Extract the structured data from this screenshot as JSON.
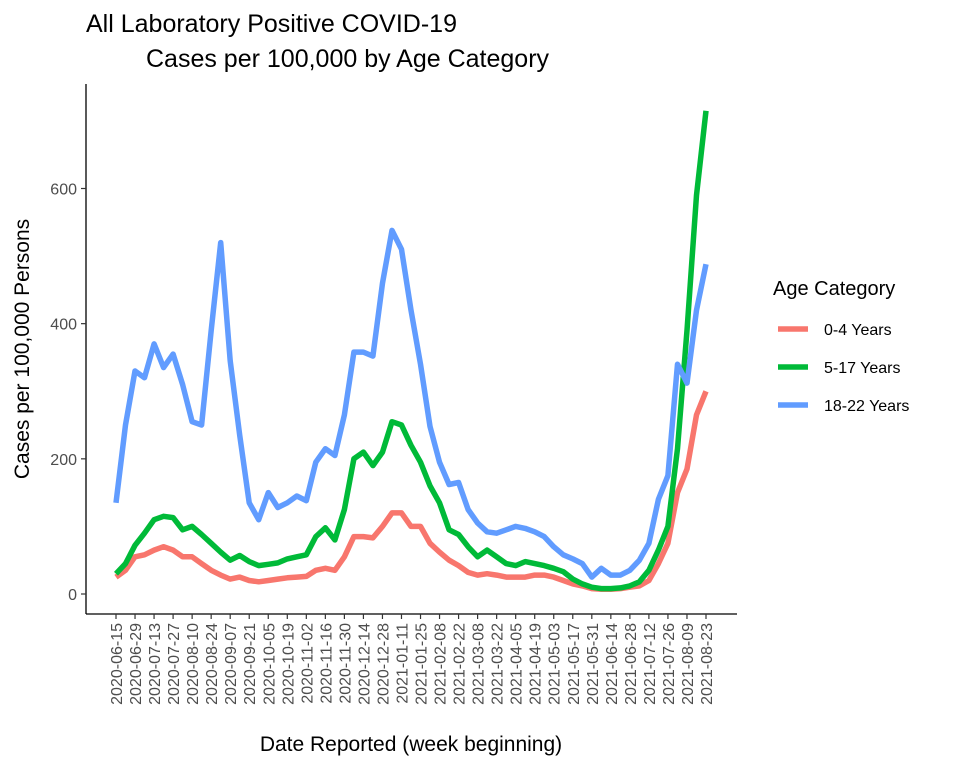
{
  "chart_data": {
    "type": "line",
    "title_line1": "All Laboratory Positive COVID-19",
    "title_line2": "Cases per 100,000 by Age Category",
    "xlabel": "Date Reported (week beginning)",
    "ylabel": "Cases per 100,000 Persons",
    "ylim": [
      -25,
      725
    ],
    "yticks": [
      0,
      200,
      400,
      600
    ],
    "grid": false,
    "legend": {
      "title": "Age Category",
      "placement": "right"
    },
    "x": [
      "2020-06-15",
      "2020-06-22",
      "2020-06-29",
      "2020-07-06",
      "2020-07-13",
      "2020-07-20",
      "2020-07-27",
      "2020-08-03",
      "2020-08-10",
      "2020-08-17",
      "2020-08-24",
      "2020-08-31",
      "2020-09-07",
      "2020-09-14",
      "2020-09-21",
      "2020-09-28",
      "2020-10-05",
      "2020-10-12",
      "2020-10-19",
      "2020-10-26",
      "2020-11-02",
      "2020-11-09",
      "2020-11-16",
      "2020-11-23",
      "2020-11-30",
      "2020-12-07",
      "2020-12-14",
      "2020-12-21",
      "2020-12-28",
      "2021-01-04",
      "2021-01-11",
      "2021-01-18",
      "2021-01-25",
      "2021-02-01",
      "2021-02-08",
      "2021-02-15",
      "2021-02-22",
      "2021-03-01",
      "2021-03-08",
      "2021-03-15",
      "2021-03-22",
      "2021-03-29",
      "2021-04-05",
      "2021-04-12",
      "2021-04-19",
      "2021-04-26",
      "2021-05-03",
      "2021-05-10",
      "2021-05-17",
      "2021-05-24",
      "2021-05-31",
      "2021-06-07",
      "2021-06-14",
      "2021-06-21",
      "2021-06-28",
      "2021-07-05",
      "2021-07-12",
      "2021-07-19",
      "2021-07-26",
      "2021-08-02",
      "2021-08-09",
      "2021-08-16",
      "2021-08-23"
    ],
    "xtick_labels": [
      "2020-06-15",
      "2020-06-29",
      "2020-07-13",
      "2020-07-27",
      "2020-08-10",
      "2020-08-24",
      "2020-09-07",
      "2020-09-21",
      "2020-10-05",
      "2020-10-19",
      "2020-11-02",
      "2020-11-16",
      "2020-11-30",
      "2020-12-14",
      "2020-12-28",
      "2021-01-11",
      "2021-01-25",
      "2021-02-08",
      "2021-02-22",
      "2021-03-08",
      "2021-03-22",
      "2021-04-05",
      "2021-04-19",
      "2021-05-03",
      "2021-05-17",
      "2021-05-31",
      "2021-06-14",
      "2021-06-28",
      "2021-07-12",
      "2021-07-26",
      "2021-08-09",
      "2021-08-23"
    ],
    "series": [
      {
        "name": "0-4 Years",
        "color": "#F8766D",
        "values": [
          25,
          35,
          55,
          58,
          65,
          70,
          65,
          55,
          55,
          45,
          35,
          28,
          22,
          25,
          20,
          18,
          20,
          22,
          24,
          25,
          26,
          35,
          38,
          35,
          55,
          85,
          85,
          83,
          100,
          120,
          120,
          100,
          100,
          75,
          62,
          50,
          42,
          32,
          28,
          30,
          28,
          25,
          25,
          25,
          28,
          28,
          25,
          20,
          15,
          12,
          8,
          7,
          7,
          8,
          10,
          12,
          20,
          45,
          75,
          150,
          185,
          265,
          300
        ]
      },
      {
        "name": "5-17 Years",
        "color": "#00BA38",
        "values": [
          30,
          45,
          72,
          90,
          110,
          115,
          113,
          95,
          100,
          88,
          75,
          62,
          50,
          57,
          48,
          42,
          44,
          46,
          52,
          55,
          58,
          85,
          98,
          80,
          125,
          200,
          210,
          190,
          210,
          255,
          250,
          220,
          195,
          160,
          135,
          95,
          88,
          70,
          55,
          65,
          55,
          45,
          42,
          48,
          45,
          42,
          38,
          33,
          22,
          15,
          10,
          8,
          8,
          9,
          12,
          18,
          35,
          65,
          100,
          215,
          390,
          590,
          715
        ]
      },
      {
        "name": "18-22 Years",
        "color": "#619CFF",
        "values": [
          135,
          250,
          330,
          320,
          370,
          335,
          355,
          310,
          255,
          250,
          390,
          520,
          345,
          235,
          135,
          110,
          150,
          128,
          135,
          145,
          138,
          195,
          215,
          205,
          265,
          358,
          358,
          352,
          460,
          538,
          510,
          420,
          340,
          248,
          195,
          162,
          165,
          125,
          105,
          92,
          90,
          95,
          100,
          97,
          92,
          85,
          70,
          58,
          52,
          45,
          25,
          38,
          28,
          28,
          35,
          50,
          75,
          140,
          175,
          340,
          312,
          420,
          488
        ]
      }
    ]
  }
}
